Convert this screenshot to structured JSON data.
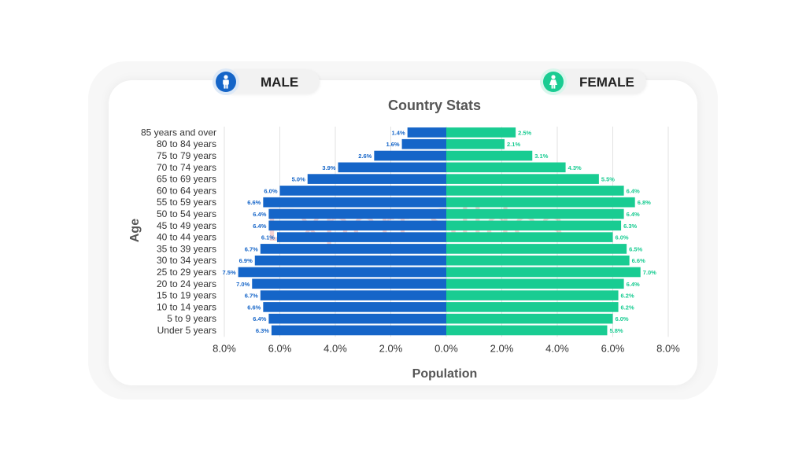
{
  "legend": {
    "male_label": "MALE",
    "female_label": "FEMALE",
    "male_icon": "male-person-icon",
    "female_icon": "female-person-icon"
  },
  "colors": {
    "male": "#1565c8",
    "female": "#19cc92",
    "male_badge": "#1565c8",
    "female_badge": "#19cc92"
  },
  "watermark": "Expert Slides",
  "chart_data": {
    "type": "bar",
    "orientation": "horizontal-population-pyramid",
    "title": "Country Stats",
    "xlabel": "Population",
    "ylabel": "Age",
    "xlim": [
      -8,
      8
    ],
    "x_ticks": [
      "8.0%",
      "6.0%",
      "4.0%",
      "2.0%",
      "0.0%",
      "2.0%",
      "4.0%",
      "6.0%",
      "8.0%"
    ],
    "grid": true,
    "categories": [
      "85 years and over",
      "80 to 84 years",
      "75 to 79 years",
      "70 to 74 years",
      "65 to 69 years",
      "60 to 64 years",
      "55 to 59 years",
      "50 to 54 years",
      "45 to 49 years",
      "40 to 44 years",
      "35 to 39 years",
      "30 to 34 years",
      "25 to 29 years",
      "20 to 24 years",
      "15 to 19 years",
      "10 to 14 years",
      "5 to 9 years",
      "Under 5 years"
    ],
    "series": [
      {
        "key": "male",
        "values": [
          1.4,
          1.6,
          2.6,
          3.9,
          5.0,
          6.0,
          6.6,
          6.4,
          6.4,
          6.1,
          6.7,
          6.9,
          7.5,
          7.0,
          6.7,
          6.6,
          6.4,
          6.3
        ],
        "labels": [
          "1.4%",
          "1.6%",
          "2.6%",
          "3.9%",
          "5.0%",
          "6.0%",
          "6.6%",
          "6.4%",
          "6.4%",
          "6.1%",
          "6.7%",
          "6.9%",
          "7.5%",
          "7.0%",
          "6.7%",
          "6.6%",
          "6.4%",
          "6.3%"
        ]
      },
      {
        "key": "female",
        "values": [
          2.5,
          2.1,
          3.1,
          4.3,
          5.5,
          6.4,
          6.8,
          6.4,
          6.3,
          6.0,
          6.5,
          6.6,
          7.0,
          6.4,
          6.2,
          6.2,
          6.0,
          5.8
        ],
        "labels": [
          "2.5%",
          "2.1%",
          "3.1%",
          "4.3%",
          "5.5%",
          "6.4%",
          "6.8%",
          "6.4%",
          "6.3%",
          "6.0%",
          "6.5%",
          "6.6%",
          "7.0%",
          "6.4%",
          "6.2%",
          "6.2%",
          "6.0%",
          "5.8%"
        ]
      }
    ]
  }
}
